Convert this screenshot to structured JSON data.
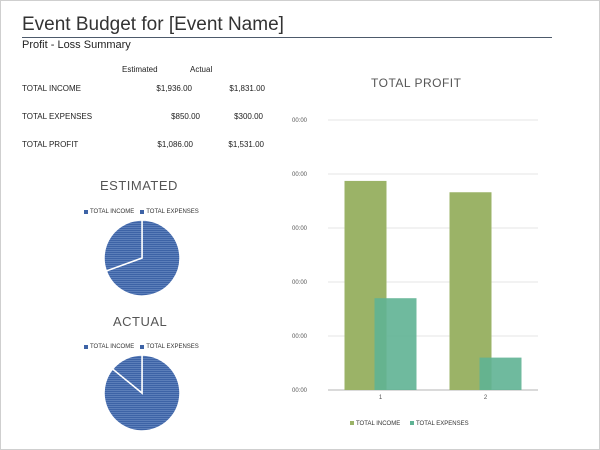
{
  "header": {
    "title": "Event Budget for [Event Name]",
    "subtitle": "Profit - Loss Summary"
  },
  "summary": {
    "columns": [
      "Estimated",
      "Actual"
    ],
    "rows": [
      {
        "label": "TOTAL INCOME",
        "estimated": "$1,936.00",
        "actual": "$1,831.00"
      },
      {
        "label": "TOTAL EXPENSES",
        "estimated": "$850.00",
        "actual": "$300.00"
      },
      {
        "label": "TOTAL PROFIT",
        "estimated": "$1,086.00",
        "actual": "$1,531.00"
      }
    ]
  },
  "colors": {
    "pie_fill": "#3d63a6",
    "income_bar": "#9bb367",
    "expense_bar": "#5fb394",
    "grid": "#e6e6e6"
  },
  "chart_data": [
    {
      "type": "pie",
      "title": "ESTIMATED",
      "labels": [
        "TOTAL INCOME",
        "TOTAL EXPENSES"
      ],
      "values": [
        1936,
        850
      ]
    },
    {
      "type": "pie",
      "title": "ACTUAL",
      "labels": [
        "TOTAL INCOME",
        "TOTAL EXPENSES"
      ],
      "values": [
        1831,
        300
      ]
    },
    {
      "type": "bar",
      "title": "TOTAL PROFIT",
      "categories": [
        "1",
        "2"
      ],
      "series": [
        {
          "name": "TOTAL INCOME",
          "values": [
            1936,
            1831
          ]
        },
        {
          "name": "TOTAL EXPENSES",
          "values": [
            850,
            300
          ]
        }
      ],
      "y_tick_labels": [
        "00:00",
        "00:00",
        "00:00",
        "00:00",
        "00:00",
        "00:00"
      ],
      "ylim": [
        0,
        2500
      ],
      "grid": true,
      "legend": "bottom"
    }
  ]
}
